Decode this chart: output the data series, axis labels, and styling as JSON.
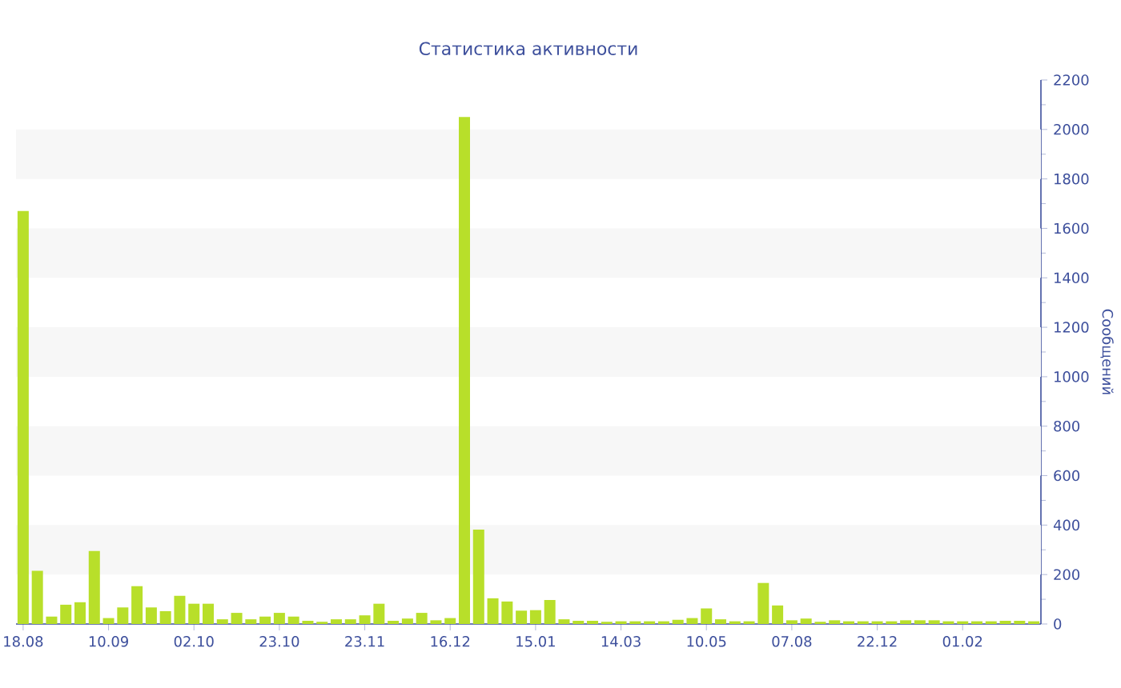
{
  "chart_data": {
    "type": "bar",
    "title": "Статистика активности",
    "ylabel": "Сообщений",
    "categories": [
      "18.08",
      null,
      null,
      null,
      null,
      null,
      "10.09",
      null,
      null,
      null,
      null,
      null,
      "02.10",
      null,
      null,
      null,
      null,
      null,
      "23.10",
      null,
      null,
      null,
      null,
      null,
      "23.11",
      null,
      null,
      null,
      null,
      null,
      "16.12",
      null,
      null,
      null,
      null,
      null,
      "15.01",
      null,
      null,
      null,
      null,
      null,
      "14.03",
      null,
      null,
      null,
      null,
      null,
      "10.05",
      null,
      null,
      null,
      null,
      null,
      "07.08",
      null,
      null,
      null,
      null,
      null,
      "22.12",
      null,
      null,
      null,
      null,
      null,
      "01.02",
      null,
      null,
      null,
      null,
      null
    ],
    "values": [
      1670,
      215,
      30,
      78,
      88,
      295,
      24,
      67,
      153,
      67,
      52,
      114,
      82,
      82,
      19,
      45,
      19,
      30,
      45,
      30,
      13,
      9,
      19,
      19,
      35,
      82,
      13,
      22,
      45,
      15,
      24,
      2050,
      382,
      104,
      91,
      54,
      56,
      97,
      19,
      13,
      13,
      9,
      11,
      11,
      11,
      11,
      17,
      24,
      63,
      19,
      11,
      11,
      166,
      75,
      15,
      22,
      9,
      15,
      11,
      11,
      11,
      11,
      15,
      15,
      15,
      11,
      11,
      11,
      11,
      13,
      13,
      11
    ],
    "color": "#b8df2a",
    "ylim": [
      0,
      2200
    ],
    "yticks": [
      0,
      200,
      400,
      600,
      800,
      1000,
      1200,
      1400,
      1600,
      1800,
      2000,
      2200
    ],
    "bands": [
      {
        "axis": "y",
        "from": 200,
        "to": 400,
        "color": "#f7f7f7"
      },
      {
        "axis": "y",
        "from": 600,
        "to": 800,
        "color": "#f7f7f7"
      },
      {
        "axis": "y",
        "from": 1000,
        "to": 1200,
        "color": "#f7f7f7"
      },
      {
        "axis": "y",
        "from": 1400,
        "to": 1600,
        "color": "#f7f7f7"
      },
      {
        "axis": "y",
        "from": 1800,
        "to": 2000,
        "color": "#f7f7f7"
      }
    ]
  }
}
